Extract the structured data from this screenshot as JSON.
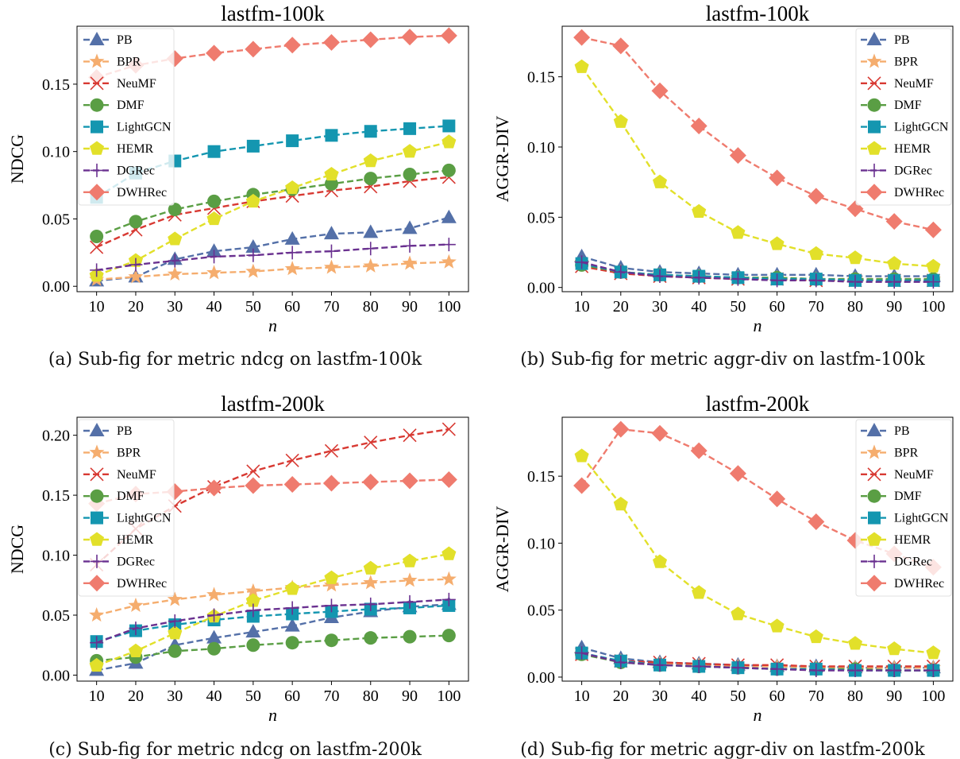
{
  "chart_data": [
    {
      "type": "line",
      "title": "lastfm-100k",
      "caption": "(a) Sub-fig for metric ndcg on lastfm-100k",
      "xlabel": "n",
      "ylabel": "NDCG",
      "x": [
        10,
        20,
        30,
        40,
        50,
        60,
        70,
        80,
        90,
        100
      ],
      "xlim": [
        5,
        105
      ],
      "ylim": [
        -0.004,
        0.193
      ],
      "yticks": [
        0.0,
        0.05,
        0.1,
        0.15
      ],
      "ytick_labels": [
        "0.00",
        "0.05",
        "0.10",
        "0.15"
      ],
      "legend_position": "top-left",
      "series": [
        {
          "name": "PB",
          "values": [
            0.004,
            0.007,
            0.02,
            0.026,
            0.029,
            0.035,
            0.039,
            0.04,
            0.043,
            0.051
          ]
        },
        {
          "name": "BPR",
          "values": [
            0.005,
            0.007,
            0.009,
            0.01,
            0.011,
            0.013,
            0.014,
            0.015,
            0.017,
            0.018
          ]
        },
        {
          "name": "NeuMF",
          "values": [
            0.029,
            0.042,
            0.053,
            0.058,
            0.063,
            0.067,
            0.071,
            0.074,
            0.078,
            0.081
          ]
        },
        {
          "name": "DMF",
          "values": [
            0.037,
            0.048,
            0.057,
            0.063,
            0.068,
            0.072,
            0.076,
            0.08,
            0.083,
            0.086
          ]
        },
        {
          "name": "LightGCN",
          "values": [
            0.066,
            0.084,
            0.093,
            0.1,
            0.104,
            0.108,
            0.112,
            0.115,
            0.117,
            0.119
          ]
        },
        {
          "name": "HEMR",
          "values": [
            0.008,
            0.019,
            0.035,
            0.05,
            0.063,
            0.073,
            0.083,
            0.093,
            0.1,
            0.107
          ]
        },
        {
          "name": "DGRec",
          "values": [
            0.012,
            0.016,
            0.019,
            0.022,
            0.023,
            0.025,
            0.026,
            0.028,
            0.03,
            0.031
          ]
        },
        {
          "name": "DWHRec",
          "values": [
            0.155,
            0.164,
            0.169,
            0.173,
            0.176,
            0.179,
            0.181,
            0.183,
            0.185,
            0.186
          ]
        }
      ]
    },
    {
      "type": "line",
      "title": "lastfm-100k",
      "caption": "(b) Sub-fig for metric aggr-div on lastfm-100k",
      "xlabel": "n",
      "ylabel": "AGGR-DIV",
      "x": [
        10,
        20,
        30,
        40,
        50,
        60,
        70,
        80,
        90,
        100
      ],
      "xlim": [
        5,
        105
      ],
      "ylim": [
        -0.003,
        0.186
      ],
      "yticks": [
        0.0,
        0.05,
        0.1,
        0.15
      ],
      "ytick_labels": [
        "0.00",
        "0.05",
        "0.10",
        "0.15"
      ],
      "legend_position": "top-right",
      "series": [
        {
          "name": "PB",
          "values": [
            0.022,
            0.014,
            0.011,
            0.01,
            0.009,
            0.009,
            0.009,
            0.008,
            0.008,
            0.008
          ]
        },
        {
          "name": "BPR",
          "values": [
            0.017,
            0.011,
            0.009,
            0.008,
            0.007,
            0.007,
            0.006,
            0.006,
            0.006,
            0.006
          ]
        },
        {
          "name": "NeuMF",
          "values": [
            0.015,
            0.01,
            0.008,
            0.007,
            0.006,
            0.006,
            0.005,
            0.005,
            0.005,
            0.005
          ]
        },
        {
          "name": "DMF",
          "values": [
            0.016,
            0.011,
            0.009,
            0.008,
            0.007,
            0.007,
            0.006,
            0.006,
            0.006,
            0.006
          ]
        },
        {
          "name": "LightGCN",
          "values": [
            0.017,
            0.011,
            0.009,
            0.008,
            0.007,
            0.006,
            0.006,
            0.005,
            0.005,
            0.005
          ]
        },
        {
          "name": "HEMR",
          "values": [
            0.157,
            0.118,
            0.075,
            0.054,
            0.039,
            0.031,
            0.024,
            0.021,
            0.017,
            0.015
          ]
        },
        {
          "name": "DGRec",
          "values": [
            0.018,
            0.011,
            0.008,
            0.007,
            0.006,
            0.005,
            0.005,
            0.004,
            0.004,
            0.004
          ]
        },
        {
          "name": "DWHRec",
          "values": [
            0.178,
            0.172,
            0.14,
            0.115,
            0.094,
            0.078,
            0.065,
            0.056,
            0.047,
            0.041
          ]
        }
      ]
    },
    {
      "type": "line",
      "title": "lastfm-200k",
      "caption": "(c) Sub-fig for metric ndcg on lastfm-200k",
      "xlabel": "n",
      "ylabel": "NDCG",
      "x": [
        10,
        20,
        30,
        40,
        50,
        60,
        70,
        80,
        90,
        100
      ],
      "xlim": [
        5,
        105
      ],
      "ylim": [
        -0.005,
        0.215
      ],
      "yticks": [
        0.0,
        0.05,
        0.1,
        0.15,
        0.2
      ],
      "ytick_labels": [
        "0.00",
        "0.05",
        "0.10",
        "0.15",
        "0.20"
      ],
      "legend_position": "top-left",
      "series": [
        {
          "name": "PB",
          "values": [
            0.004,
            0.01,
            0.025,
            0.031,
            0.036,
            0.041,
            0.048,
            0.053,
            0.057,
            0.059
          ]
        },
        {
          "name": "BPR",
          "values": [
            0.05,
            0.058,
            0.063,
            0.067,
            0.07,
            0.073,
            0.075,
            0.077,
            0.079,
            0.08
          ]
        },
        {
          "name": "NeuMF",
          "values": [
            0.092,
            0.122,
            0.141,
            0.157,
            0.17,
            0.179,
            0.187,
            0.194,
            0.2,
            0.205
          ]
        },
        {
          "name": "DMF",
          "values": [
            0.012,
            0.015,
            0.02,
            0.022,
            0.025,
            0.027,
            0.029,
            0.031,
            0.032,
            0.033
          ]
        },
        {
          "name": "LightGCN",
          "values": [
            0.028,
            0.037,
            0.042,
            0.046,
            0.049,
            0.051,
            0.053,
            0.055,
            0.056,
            0.058
          ]
        },
        {
          "name": "HEMR",
          "values": [
            0.008,
            0.02,
            0.035,
            0.049,
            0.062,
            0.072,
            0.081,
            0.089,
            0.095,
            0.101
          ]
        },
        {
          "name": "DGRec",
          "values": [
            0.027,
            0.039,
            0.045,
            0.05,
            0.054,
            0.056,
            0.058,
            0.059,
            0.061,
            0.063
          ]
        },
        {
          "name": "DWHRec",
          "values": [
            0.143,
            0.151,
            0.153,
            0.156,
            0.158,
            0.159,
            0.16,
            0.161,
            0.162,
            0.163
          ]
        }
      ]
    },
    {
      "type": "line",
      "title": "lastfm-200k",
      "caption": "(d) Sub-fig for metric aggr-div on lastfm-200k",
      "xlabel": "n",
      "ylabel": "AGGR-DIV",
      "x": [
        10,
        20,
        30,
        40,
        50,
        60,
        70,
        80,
        90,
        100
      ],
      "xlim": [
        5,
        105
      ],
      "ylim": [
        -0.003,
        0.194
      ],
      "yticks": [
        0.0,
        0.05,
        0.1,
        0.15
      ],
      "ytick_labels": [
        "0.00",
        "0.05",
        "0.10",
        "0.15"
      ],
      "legend_position": "top-right",
      "series": [
        {
          "name": "PB",
          "values": [
            0.022,
            0.014,
            0.011,
            0.01,
            0.009,
            0.008,
            0.008,
            0.007,
            0.007,
            0.007
          ]
        },
        {
          "name": "BPR",
          "values": [
            0.017,
            0.012,
            0.01,
            0.009,
            0.008,
            0.008,
            0.007,
            0.007,
            0.007,
            0.007
          ]
        },
        {
          "name": "NeuMF",
          "values": [
            0.017,
            0.012,
            0.011,
            0.01,
            0.009,
            0.009,
            0.008,
            0.008,
            0.008,
            0.008
          ]
        },
        {
          "name": "DMF",
          "values": [
            0.017,
            0.011,
            0.009,
            0.008,
            0.007,
            0.006,
            0.006,
            0.006,
            0.005,
            0.005
          ]
        },
        {
          "name": "LightGCN",
          "values": [
            0.018,
            0.012,
            0.009,
            0.008,
            0.007,
            0.006,
            0.006,
            0.005,
            0.005,
            0.005
          ]
        },
        {
          "name": "HEMR",
          "values": [
            0.165,
            0.129,
            0.086,
            0.063,
            0.047,
            0.038,
            0.03,
            0.025,
            0.021,
            0.018
          ]
        },
        {
          "name": "DGRec",
          "values": [
            0.018,
            0.011,
            0.009,
            0.008,
            0.007,
            0.006,
            0.005,
            0.005,
            0.005,
            0.005
          ]
        },
        {
          "name": "DWHRec",
          "values": [
            0.143,
            0.185,
            0.182,
            0.169,
            0.152,
            0.133,
            0.116,
            0.102,
            0.092,
            0.082
          ]
        }
      ]
    }
  ],
  "series_styles": [
    {
      "name": "PB",
      "color": "#5470a8",
      "marker": "triangle"
    },
    {
      "name": "BPR",
      "color": "#f5ad6e",
      "marker": "star"
    },
    {
      "name": "NeuMF",
      "color": "#d83a33",
      "marker": "x"
    },
    {
      "name": "DMF",
      "color": "#5a9e44",
      "marker": "circle"
    },
    {
      "name": "LightGCN",
      "color": "#1496b0",
      "marker": "square"
    },
    {
      "name": "HEMR",
      "color": "#e2e02a",
      "marker": "pentagon"
    },
    {
      "name": "DGRec",
      "color": "#6a3190",
      "marker": "plus"
    },
    {
      "name": "DWHRec",
      "color": "#ef7b6e",
      "marker": "diamond"
    }
  ]
}
